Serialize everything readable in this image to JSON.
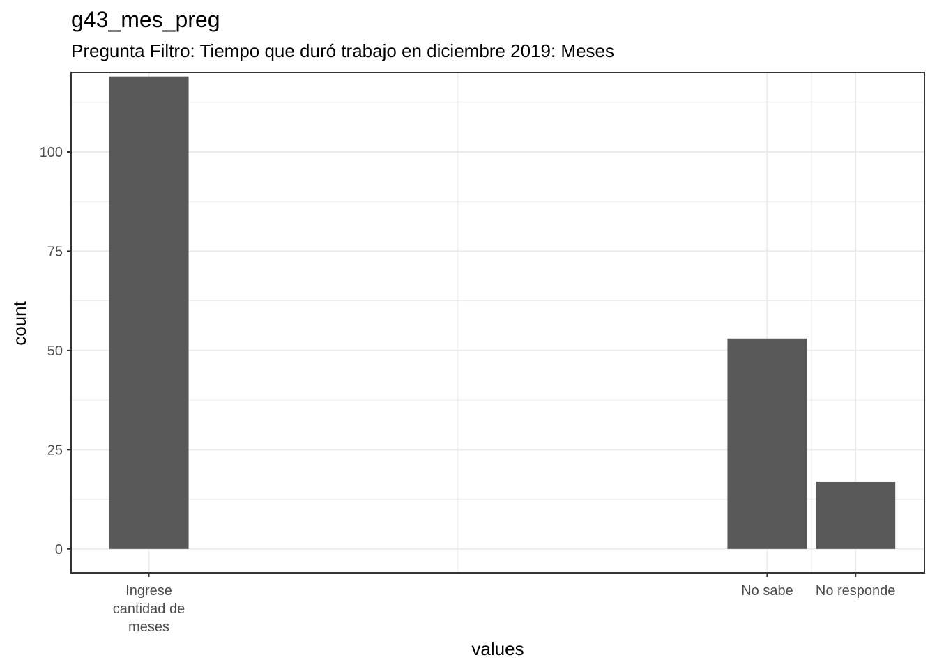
{
  "chart_data": {
    "type": "bar",
    "title": "g43_mes_preg",
    "subtitle": "Pregunta Filtro: Tiempo que duró trabajo en diciembre 2019: Meses",
    "xlabel": "values",
    "ylabel": "count",
    "categories": [
      {
        "lines": [
          "Ingrese",
          "cantidad de",
          "meses"
        ],
        "x": 1
      },
      {
        "lines": [
          "No sabe"
        ],
        "x": 8
      },
      {
        "lines": [
          "No responde"
        ],
        "x": 9
      }
    ],
    "values": [
      119,
      53,
      17
    ],
    "ylim": [
      -6,
      120
    ],
    "yticks": [
      0,
      25,
      50,
      75,
      100
    ],
    "xlim": [
      0.12,
      9.78
    ],
    "bar_width": 0.9,
    "grid": true,
    "colors": {
      "bar": "#595959",
      "grid": "#ebebeb",
      "panel_border": "#333333",
      "tick_label": "#4d4d4d"
    }
  }
}
